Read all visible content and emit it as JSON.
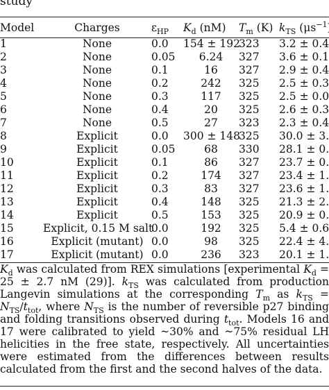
{
  "caption_fragment": "study",
  "headers": {
    "model": "Model",
    "charges": "Charges",
    "eps": "ε",
    "eps_sub": "HP",
    "kd": "K",
    "kd_sub": "d",
    "kd_unit": " (nM)",
    "tm": "T",
    "tm_sub": "m",
    "tm_unit": " (K)",
    "kts": "k",
    "kts_sub": "TS",
    "kts_unit": " (μs",
    "kts_sup": "−1",
    "kts_close": ")"
  },
  "rows": [
    {
      "model": "1",
      "charges": "None",
      "eps": "0.0",
      "kd": "154 ± 192",
      "tm": "323",
      "kts": "3.2 ± 0.4"
    },
    {
      "model": "2",
      "charges": "None",
      "eps": "0.05",
      "kd": "6.24",
      "tm": "327",
      "kts": "3.6 ± 0.1"
    },
    {
      "model": "3",
      "charges": "None",
      "eps": "0.1",
      "kd": "16",
      "tm": "327",
      "kts": "2.9 ± 0.4"
    },
    {
      "model": "4",
      "charges": "None",
      "eps": "0.2",
      "kd": "242",
      "tm": "325",
      "kts": "2.5 ± 0.3"
    },
    {
      "model": "5",
      "charges": "None",
      "eps": "0.3",
      "kd": "117",
      "tm": "325",
      "kts": "2.5 ± 0.04"
    },
    {
      "model": "6",
      "charges": "None",
      "eps": "0.4",
      "kd": "20",
      "tm": "325",
      "kts": "2.6 ± 0.3"
    },
    {
      "model": "7",
      "charges": "None",
      "eps": "0.5",
      "kd": "27",
      "tm": "323",
      "kts": "2.3 ± 0.4"
    },
    {
      "model": "8",
      "charges": "Explicit",
      "eps": "0.0",
      "kd": "300 ± 148",
      "tm": "325",
      "kts": "30.0 ± 3.1"
    },
    {
      "model": "9",
      "charges": "Explicit",
      "eps": "0.05",
      "kd": "68",
      "tm": "330",
      "kts": "28.1 ± 0.9"
    },
    {
      "model": "10",
      "charges": "Explicit",
      "eps": "0.1",
      "kd": "86",
      "tm": "327",
      "kts": "23.7 ± 0.3"
    },
    {
      "model": "11",
      "charges": "Explicit",
      "eps": "0.2",
      "kd": "174",
      "tm": "327",
      "kts": "23.4 ± 1.6"
    },
    {
      "model": "12",
      "charges": "Explicit",
      "eps": "0.3",
      "kd": "83",
      "tm": "327",
      "kts": "23.6 ± 1.9"
    },
    {
      "model": "13",
      "charges": "Explicit",
      "eps": "0.4",
      "kd": "148",
      "tm": "325",
      "kts": "21.3 ± 2.5"
    },
    {
      "model": "14",
      "charges": "Explicit",
      "eps": "0.5",
      "kd": "153",
      "tm": "325",
      "kts": "20.9 ± 0.7"
    },
    {
      "model": "15",
      "charges": "Explicit, 0.15 M salt",
      "eps": "0.0",
      "kd": "192",
      "tm": "325",
      "kts": "5.4 ± 0.6"
    },
    {
      "model": "16",
      "charges": "Explicit (mutant)",
      "eps": "0.0",
      "kd": "98",
      "tm": "325",
      "kts": "22.4 ± 4.9"
    },
    {
      "model": "17",
      "charges": "Explicit (mutant)",
      "eps": "0.0",
      "kd": "236",
      "tm": "323",
      "kts": "20.1 ± 1.1"
    }
  ],
  "notes": {
    "kd": "K",
    "kd_sub": "d",
    "t1": " was calculated from REX simulations [experimental ",
    "kd2": "K",
    "kd2_sub": "d",
    "t2": " = 25 ± 2.7 nM (29)]. ",
    "kts": "k",
    "kts_sub": "TS",
    "t3": " was calculated from production Langevin simulations at the corresponding ",
    "tm": "T",
    "tm_sub": "m",
    "t4": " as ",
    "kts2": "k",
    "kts2_sub": "TS",
    "t5": " = ",
    "nts": "N",
    "nts_sub": "TS",
    "t6": "/",
    "ttot": "t",
    "ttot_sub": "tot",
    "t7": ", where ",
    "nts2": "N",
    "nts2_sub": "TS",
    "t8": " is the number of reversible p27 binding and folding transitions observed during ",
    "ttot2": "t",
    "ttot2_sub": "tot",
    "t9": ". Models 16 and 17 were calibrated to yield ~30% and ~75% residual LH helicities in the free state, respectively. All uncertainties were estimated from the differences between results calculated from the first and the second halves of the data."
  }
}
